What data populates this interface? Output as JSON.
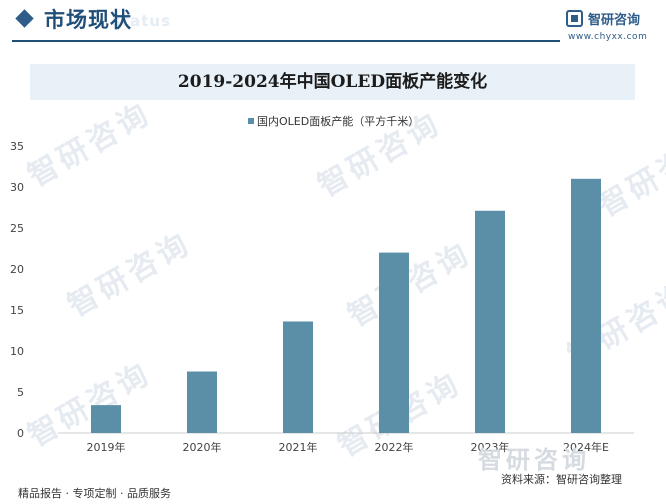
{
  "header": {
    "section_title": "市场现状",
    "section_ghost": "status",
    "logo_name": "智研咨询",
    "logo_url": "www.chyxx.com"
  },
  "watermark_text": "智研咨询",
  "chart_data": {
    "type": "bar",
    "title": "2019-2024年中国OLED面板产能变化",
    "categories": [
      "2019年",
      "2020年",
      "2021年",
      "2022年",
      "2023年",
      "2024年E"
    ],
    "series": [
      {
        "name": "国内OLED面板产能（平方千米）",
        "values": [
          3.4,
          7.5,
          13.6,
          22.0,
          27.1,
          31.0
        ],
        "color": "#5b8fa8"
      }
    ],
    "ylim": [
      0,
      35
    ],
    "yticks": [
      0,
      5,
      10,
      15,
      20,
      25,
      30,
      35
    ],
    "legend_position": "top-center",
    "grid": false
  },
  "footer": {
    "left": "精品报告 · 专项定制 · 品质服务",
    "source": "资料来源：智研咨询整理",
    "logo": "智研咨询"
  }
}
